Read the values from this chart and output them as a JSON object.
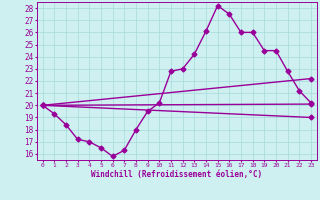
{
  "xlabel": "Windchill (Refroidissement éolien,°C)",
  "xlim": [
    -0.5,
    23.5
  ],
  "ylim": [
    15.5,
    28.5
  ],
  "xticks": [
    0,
    1,
    2,
    3,
    4,
    5,
    6,
    7,
    8,
    9,
    10,
    11,
    12,
    13,
    14,
    15,
    16,
    17,
    18,
    19,
    20,
    21,
    22,
    23
  ],
  "yticks": [
    16,
    17,
    18,
    19,
    20,
    21,
    22,
    23,
    24,
    25,
    26,
    27,
    28
  ],
  "bg_color": "#cff0f0",
  "line_color": "#990099",
  "grid_color": "#aadddd",
  "series": [
    {
      "x": [
        0,
        1,
        2,
        3,
        4,
        5,
        6,
        7,
        8,
        9,
        10,
        11,
        12,
        13,
        14,
        15,
        16,
        17,
        18,
        19,
        20,
        21,
        22,
        23
      ],
      "y": [
        20.0,
        19.3,
        18.4,
        17.2,
        17.0,
        16.5,
        15.8,
        16.3,
        18.0,
        19.5,
        20.2,
        22.8,
        23.0,
        24.2,
        26.1,
        28.2,
        27.5,
        26.0,
        26.0,
        24.5,
        24.5,
        22.8,
        21.2,
        20.2
      ],
      "marker": "D",
      "markersize": 2.5,
      "linewidth": 1.0
    },
    {
      "x": [
        0,
        23
      ],
      "y": [
        20.0,
        22.2
      ],
      "marker": "D",
      "markersize": 2.5,
      "linewidth": 1.0
    },
    {
      "x": [
        0,
        23
      ],
      "y": [
        20.0,
        20.1
      ],
      "marker": "D",
      "markersize": 2.5,
      "linewidth": 1.0
    },
    {
      "x": [
        0,
        23
      ],
      "y": [
        20.0,
        19.0
      ],
      "marker": "D",
      "markersize": 2.5,
      "linewidth": 1.0
    }
  ]
}
